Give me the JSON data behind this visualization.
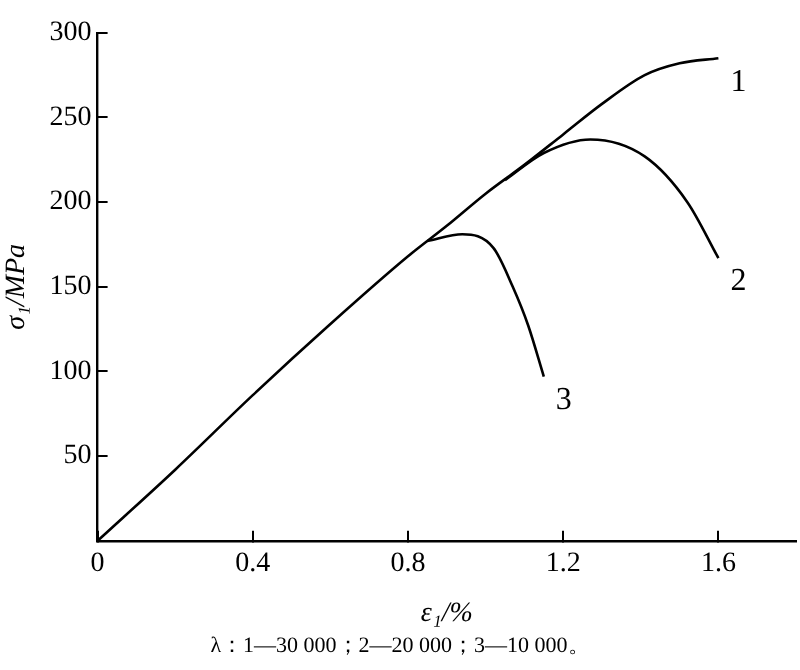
{
  "chart_data": {
    "type": "line",
    "xlabel": "ε₁/%",
    "ylabel": "σ₁/MPa",
    "xlim": [
      0,
      1.8
    ],
    "xticks": [
      0,
      0.4,
      0.8,
      1.2,
      1.6
    ],
    "ylim": [
      0,
      300
    ],
    "yticks": [
      {
        "value": 0,
        "label": null
      },
      50,
      100,
      150,
      200,
      250,
      300
    ],
    "grid": false,
    "legend": false,
    "marker": "none",
    "line_style": "solid",
    "series": [
      {
        "name": "1",
        "color": "#000000",
        "x": [
          0,
          0.2,
          0.4,
          0.6,
          0.8,
          0.9,
          1.0,
          1.1,
          1.2,
          1.3,
          1.41,
          1.5,
          1.6
        ],
        "values": [
          0,
          42,
          86,
          128,
          168,
          186,
          205,
          222,
          240,
          258,
          275,
          282,
          285
        ]
      },
      {
        "name": "2",
        "color": "#000000",
        "x": [
          1.05,
          1.15,
          1.27,
          1.41,
          1.52,
          1.6
        ],
        "values": [
          213,
          229,
          237,
          227,
          200,
          167
        ]
      },
      {
        "name": "3",
        "color": "#000000",
        "x": [
          0.85,
          0.94,
          1.02,
          1.07,
          1.11,
          1.15
        ],
        "values": [
          177,
          181,
          173,
          150,
          127,
          97
        ]
      }
    ],
    "annotations": [
      "λ：1—30 000；2—20 000；3—10 000。"
    ]
  }
}
